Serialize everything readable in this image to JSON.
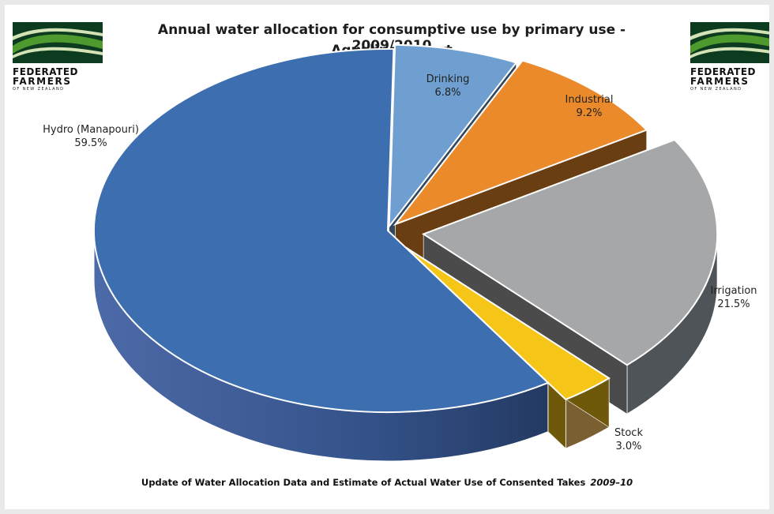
{
  "title": "Annual water allocation for consumptive use by primary use - 2009/2010",
  "subtitle": "Aqualinc Report",
  "logo": {
    "line1": "FEDERATED",
    "line2": "FARMERS",
    "line3": "OF NEW ZEALAND",
    "colors": [
      "#0d3b1f",
      "#4f9a2e",
      "#d4e3b6"
    ]
  },
  "footnote": {
    "text": "Update of Water Allocation Data and Estimate of Actual Water Use of Consented Takes",
    "emphasis": "2009–10"
  },
  "chart_data": {
    "type": "pie",
    "style": "3d-exploded",
    "title": "Annual water allocation for consumptive use by primary use - 2009/2010",
    "subtitle": "Aqualinc Report",
    "slices": [
      {
        "label": "Drinking",
        "value_text": "6.8%",
        "value": 6.8,
        "color": "#6e9fd0"
      },
      {
        "label": "Industrial",
        "value_text": "9.2%",
        "value": 9.2,
        "color": "#ea8a2a"
      },
      {
        "label": "Irrigation",
        "value_text": "21.5%",
        "value": 21.5,
        "color": "#a6a7a9"
      },
      {
        "label": "Stock",
        "value_text": "3.0%",
        "value": 3.0,
        "color": "#f5c518"
      },
      {
        "label": "Hydro (Manapouri)",
        "value_text": "59.5%",
        "value": 59.5,
        "color": "#3d6fb0"
      }
    ]
  }
}
